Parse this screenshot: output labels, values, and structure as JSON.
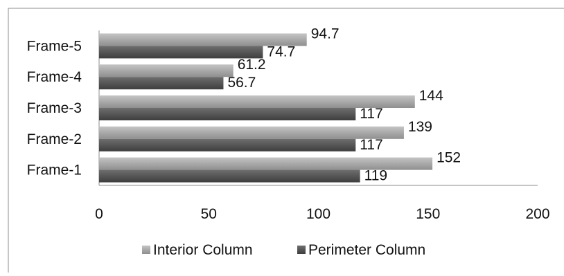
{
  "chart_data": {
    "type": "bar",
    "orientation": "horizontal",
    "categories": [
      "Frame-1",
      "Frame-2",
      "Frame-3",
      "Frame-4",
      "Frame-5"
    ],
    "series": [
      {
        "name": "Interior Column",
        "values": [
          152,
          139,
          144,
          61.2,
          94.7
        ],
        "color": "#a6a6a6"
      },
      {
        "name": "Perimeter Column",
        "values": [
          119,
          117,
          117,
          56.7,
          74.7
        ],
        "color": "#595959"
      }
    ],
    "data_labels": {
      "Interior Column": [
        "152",
        "139",
        "144",
        "61.2",
        "94.7"
      ],
      "Perimeter Column": [
        "119",
        "117",
        "117",
        "56.7",
        "74.7"
      ]
    },
    "title": "",
    "xlabel": "",
    "ylabel": "",
    "xlim": [
      0,
      200
    ],
    "ticks": [
      "0",
      "50",
      "100",
      "150",
      "200"
    ],
    "tick_values": [
      0,
      50,
      100,
      150,
      200
    ],
    "grid": false,
    "legend_position": "bottom"
  }
}
